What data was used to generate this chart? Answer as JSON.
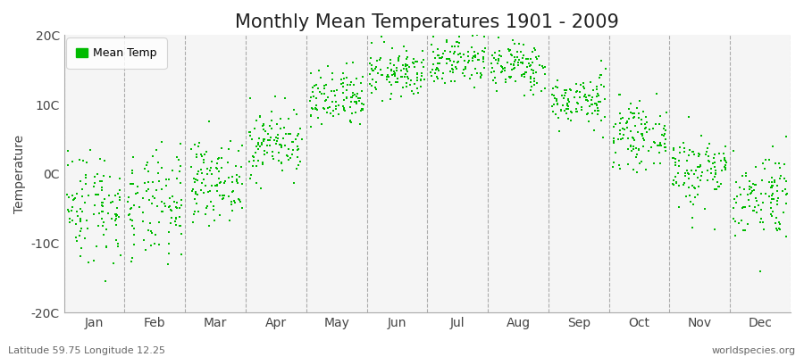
{
  "title": "Monthly Mean Temperatures 1901 - 2009",
  "ylabel": "Temperature",
  "ylim": [
    -20,
    20
  ],
  "yticks": [
    -20,
    -10,
    0,
    10,
    20
  ],
  "ytick_labels": [
    "-20C",
    "-10C",
    "0C",
    "10C",
    "20C"
  ],
  "months": [
    "Jan",
    "Feb",
    "Mar",
    "Apr",
    "May",
    "Jun",
    "Jul",
    "Aug",
    "Sep",
    "Oct",
    "Nov",
    "Dec"
  ],
  "month_means": [
    -4.5,
    -5.0,
    -1.0,
    4.5,
    10.5,
    14.5,
    16.5,
    15.5,
    10.5,
    5.5,
    0.5,
    -3.0
  ],
  "month_stds": [
    4.2,
    4.0,
    2.8,
    2.5,
    2.2,
    1.8,
    2.0,
    1.8,
    1.8,
    2.2,
    2.8,
    3.2
  ],
  "n_years": 109,
  "dot_color": "#00BB00",
  "dot_size": 4,
  "plot_bg_color": "#F5F5F5",
  "outer_bg_color": "#FFFFFF",
  "title_fontsize": 15,
  "axis_label_fontsize": 10,
  "tick_fontsize": 10,
  "legend_label": "Mean Temp",
  "bottom_left_text": "Latitude 59.75 Longitude 12.25",
  "bottom_right_text": "worldspecies.org",
  "vline_color": "#999999",
  "vline_style": "--",
  "seed": 42
}
